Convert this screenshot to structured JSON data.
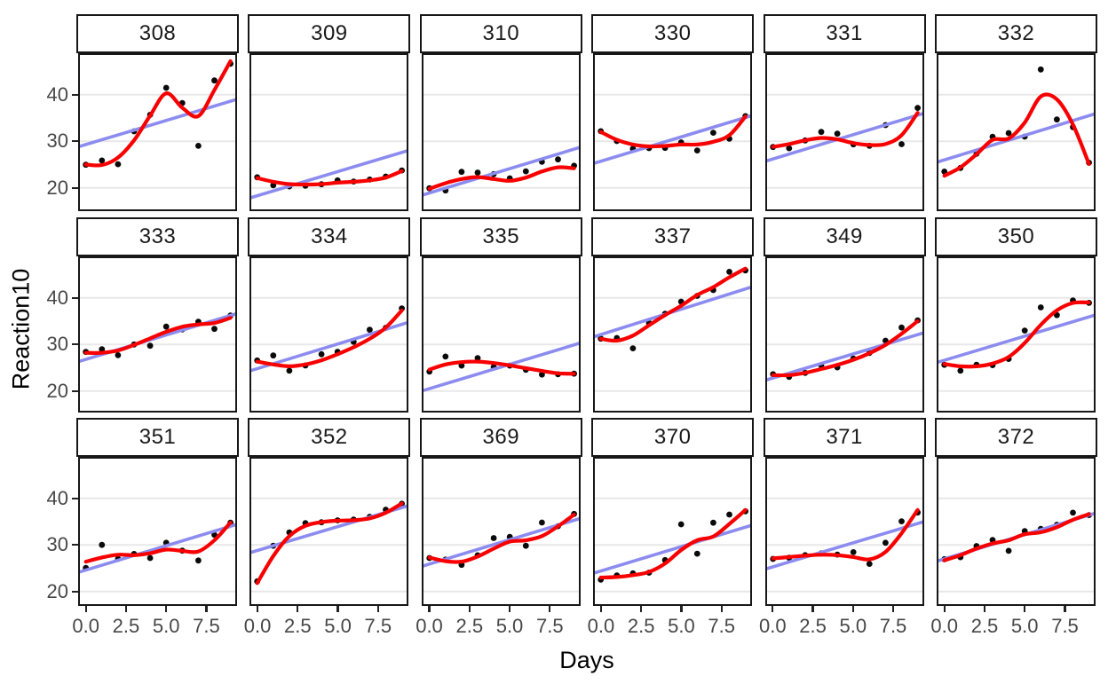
{
  "y_axis": {
    "title": "Reaction10",
    "tick_labels": [
      "40",
      "30",
      "20"
    ],
    "tick_values": [
      40,
      30,
      20
    ]
  },
  "x_axis": {
    "title": "Days",
    "tick_labels": [
      "0.0",
      "2.5",
      "5.0",
      "7.5"
    ],
    "tick_values": [
      0,
      2.5,
      5,
      7.5
    ]
  },
  "colors": {
    "smooth_curve": "#F80000",
    "lm_line": "#8C8CF0",
    "point": "#0A0A0A",
    "gridline": "#E8E8E8",
    "panel_border": "#171717",
    "strip_border": "#171717",
    "tick_text": "#474747",
    "strip_text": "#1A1A1A"
  },
  "chart_data": {
    "type": "scatter",
    "title": "",
    "xlabel": "Days",
    "ylabel": "Reaction10",
    "x": [
      0,
      1,
      2,
      3,
      4,
      5,
      6,
      7,
      8,
      9
    ],
    "xlim": [
      -0.48,
      9.41
    ],
    "ylim": [
      15.4,
      48.9
    ],
    "grid": "horizontal-major-only",
    "legend": "none",
    "facet_layout": {
      "rows": 3,
      "cols": 6
    },
    "facets": [
      {
        "label": "308",
        "points": [
          24.96,
          25.87,
          25.08,
          32.14,
          35.69,
          41.47,
          38.22,
          29.01,
          43.06,
          46.64
        ],
        "lm": [
          29.3,
          38.6
        ],
        "smooth": [
          25.0,
          24.9,
          26.5,
          30.2,
          35.5,
          40.3,
          37.2,
          35.4,
          41.0,
          47.2
        ]
      },
      {
        "label": "309",
        "points": [
          22.27,
          20.53,
          20.3,
          20.47,
          20.77,
          21.6,
          21.36,
          21.77,
          22.43,
          23.73
        ],
        "lm": [
          18.3,
          27.6
        ],
        "smooth": [
          22.1,
          21.3,
          20.8,
          20.7,
          20.8,
          21.1,
          21.3,
          21.6,
          22.2,
          23.6
        ]
      },
      {
        "label": "310",
        "points": [
          19.91,
          19.43,
          23.43,
          23.28,
          22.93,
          22.05,
          23.54,
          25.58,
          26.1,
          24.75
        ],
        "lm": [
          18.9,
          28.3
        ],
        "smooth": [
          19.8,
          21.0,
          21.9,
          22.3,
          21.9,
          21.5,
          22.2,
          23.5,
          24.4,
          24.2
        ]
      },
      {
        "label": "330",
        "points": [
          32.15,
          30.04,
          28.39,
          28.51,
          28.58,
          29.76,
          28.02,
          31.83,
          30.53,
          35.4
        ],
        "lm": [
          25.7,
          35.1
        ],
        "smooth": [
          32.0,
          30.3,
          29.3,
          28.9,
          29.0,
          29.3,
          29.3,
          29.9,
          31.3,
          35.3
        ]
      },
      {
        "label": "331",
        "points": [
          28.76,
          28.5,
          30.18,
          32.01,
          31.63,
          29.33,
          29.01,
          33.48,
          29.37,
          37.16
        ],
        "lm": [
          26.2,
          35.6
        ],
        "smooth": [
          28.8,
          29.4,
          30.2,
          30.7,
          30.4,
          29.6,
          29.2,
          29.4,
          31.3,
          36.1
        ]
      },
      {
        "label": "332",
        "points": [
          23.49,
          24.28,
          27.3,
          30.98,
          31.75,
          31.0,
          45.42,
          34.68,
          33.03,
          25.39
        ],
        "lm": [
          26.0,
          35.5
        ],
        "smooth": [
          22.6,
          24.4,
          27.2,
          30.3,
          30.6,
          34.0,
          39.6,
          39.0,
          33.6,
          25.1
        ]
      },
      {
        "label": "333",
        "points": [
          28.38,
          28.96,
          27.68,
          29.98,
          29.72,
          33.82,
          33.2,
          34.88,
          33.34,
          36.2
        ],
        "lm": [
          26.8,
          36.2
        ],
        "smooth": [
          28.2,
          28.2,
          28.7,
          29.9,
          31.3,
          32.7,
          33.8,
          34.3,
          34.6,
          35.7
        ]
      },
      {
        "label": "334",
        "points": [
          26.55,
          27.62,
          24.34,
          25.47,
          27.9,
          28.42,
          30.55,
          33.15,
          33.57,
          37.73
        ],
        "lm": [
          24.8,
          34.3
        ],
        "smooth": [
          26.3,
          25.7,
          25.3,
          25.7,
          26.6,
          27.9,
          29.4,
          31.2,
          33.6,
          37.3
        ]
      },
      {
        "label": "335",
        "points": [
          24.16,
          27.39,
          25.45,
          27.08,
          25.15,
          25.46,
          24.55,
          23.53,
          23.58,
          23.72
        ],
        "lm": [
          20.5,
          29.9
        ],
        "smooth": [
          24.6,
          25.7,
          26.2,
          26.3,
          26.0,
          25.5,
          24.9,
          24.3,
          23.8,
          23.7
        ]
      },
      {
        "label": "337",
        "points": [
          31.24,
          31.38,
          29.16,
          34.61,
          36.57,
          39.18,
          40.43,
          41.67,
          45.59,
          45.89
        ],
        "lm": [
          32.1,
          41.9
        ],
        "smooth": [
          31.2,
          30.8,
          31.9,
          34.1,
          36.3,
          38.3,
          40.6,
          42.3,
          44.4,
          46.3
        ]
      },
      {
        "label": "349",
        "points": [
          23.61,
          23.03,
          23.89,
          25.49,
          25.07,
          26.98,
          28.16,
          30.81,
          33.63,
          35.16
        ],
        "lm": [
          22.8,
          32.1
        ],
        "smooth": [
          23.4,
          23.4,
          23.9,
          24.7,
          25.6,
          26.7,
          28.1,
          29.9,
          32.3,
          35.0
        ]
      },
      {
        "label": "350",
        "points": [
          25.63,
          24.35,
          25.62,
          25.55,
          26.89,
          32.97,
          37.94,
          36.29,
          39.45,
          38.91
        ],
        "lm": [
          26.6,
          35.9
        ],
        "smooth": [
          25.8,
          25.3,
          25.3,
          25.9,
          27.3,
          30.3,
          34.2,
          37.3,
          38.9,
          39.0
        ]
      },
      {
        "label": "351",
        "points": [
          25.05,
          30.01,
          26.99,
          28.06,
          27.18,
          30.46,
          28.77,
          26.66,
          32.15,
          34.76
        ],
        "lm": [
          24.6,
          34.0
        ],
        "smooth": [
          26.4,
          27.3,
          27.9,
          27.8,
          28.2,
          29.0,
          28.7,
          28.6,
          31.0,
          34.8
        ]
      },
      {
        "label": "352",
        "points": [
          22.17,
          29.82,
          32.69,
          34.69,
          34.87,
          35.28,
          35.44,
          36.04,
          37.56,
          38.85
        ],
        "lm": [
          28.8,
          38.0
        ],
        "smooth": [
          21.8,
          27.6,
          31.9,
          34.1,
          34.9,
          35.2,
          35.3,
          35.7,
          36.9,
          38.9
        ]
      },
      {
        "label": "369",
        "points": [
          27.19,
          26.84,
          25.72,
          27.77,
          31.48,
          31.72,
          29.81,
          34.81,
          34.03,
          36.65
        ],
        "lm": [
          25.9,
          35.3
        ],
        "smooth": [
          27.3,
          26.5,
          26.4,
          27.5,
          29.2,
          30.7,
          31.0,
          31.9,
          34.0,
          36.5
        ]
      },
      {
        "label": "370",
        "points": [
          22.53,
          23.45,
          23.89,
          24.05,
          26.75,
          34.42,
          28.11,
          34.76,
          36.52,
          37.22
        ],
        "lm": [
          24.4,
          33.8
        ],
        "smooth": [
          23.0,
          23.1,
          23.5,
          24.2,
          26.0,
          28.9,
          31.0,
          31.8,
          34.5,
          37.5
        ]
      },
      {
        "label": "371",
        "points": [
          26.99,
          27.24,
          27.79,
          28.18,
          27.92,
          28.45,
          25.93,
          30.46,
          35.08,
          36.95
        ],
        "lm": [
          25.3,
          34.6
        ],
        "smooth": [
          27.1,
          27.4,
          27.7,
          27.9,
          27.8,
          27.4,
          26.9,
          28.5,
          32.5,
          37.5
        ]
      },
      {
        "label": "372",
        "points": [
          26.94,
          27.35,
          29.76,
          31.06,
          28.72,
          32.96,
          33.45,
          34.32,
          36.91,
          36.41
        ],
        "lm": [
          27.0,
          36.4
        ],
        "smooth": [
          26.7,
          27.8,
          29.2,
          30.3,
          31.0,
          32.3,
          32.7,
          33.8,
          35.4,
          36.6
        ]
      }
    ]
  }
}
